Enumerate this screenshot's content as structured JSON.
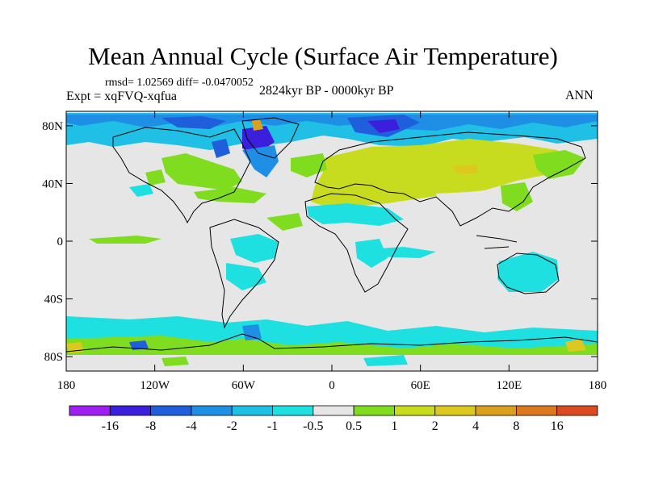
{
  "title": "Mean Annual Cycle (Surface Air Temperature)",
  "stats_line": "rmsd= 1.02569 diff= -0.0470052",
  "experiment_label": "Expt = xqFVQ-xqfua",
  "period_label": "2824kyr BP - 0000kyr BP",
  "season_label": "ANN",
  "x_ticks": [
    "180",
    "120W",
    "60W",
    "0",
    "60E",
    "120E",
    "180"
  ],
  "y_ticks": [
    "80N",
    "40N",
    "0",
    "40S",
    "80S"
  ],
  "colorbar": {
    "bins": [
      "#9f1ff0",
      "#3c1fdc",
      "#1f5fdc",
      "#1f8fe6",
      "#1fbfe6",
      "#1fe0e0",
      "#e6e6e6",
      "#80dc1f",
      "#c8dc1f",
      "#dcc81f",
      "#dca01f",
      "#dc781f",
      "#dc4a1f"
    ],
    "labels": [
      "-16",
      "-8",
      "-4",
      "-2",
      "-1",
      "-0.5",
      "0.5",
      "1",
      "2",
      "4",
      "8",
      "16"
    ]
  },
  "colors": {
    "ocean_neutral": "#e6e6e6",
    "coast": "#000000"
  }
}
